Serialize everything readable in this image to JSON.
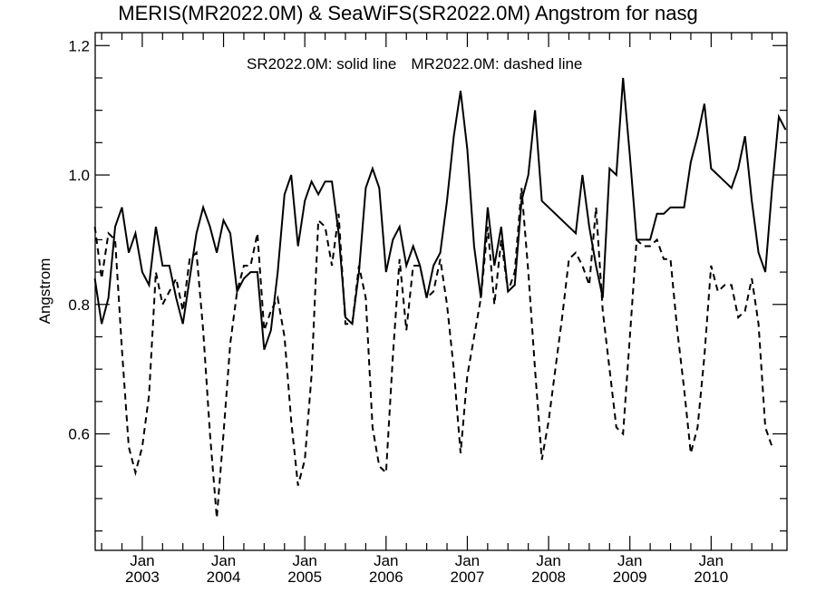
{
  "chart_data": {
    "type": "line",
    "title": "MERIS(MR2022.0M) & SeaWiFS(SR2022.0M)  Angstrom for nasg",
    "xlabel": "",
    "ylabel": "Angstrom",
    "legend": {
      "placement": "top-center",
      "entries": [
        "SR2022.0M: solid line",
        "MR2022.0M: dashed line"
      ]
    },
    "xlim": [
      "2002-06",
      "2010-12"
    ],
    "ylim": [
      0.42,
      1.22
    ],
    "y_ticks": [
      0.6,
      0.8,
      1.0,
      1.2
    ],
    "y_tick_labels": [
      "0.6",
      "0.8",
      "1.0",
      "1.2"
    ],
    "x_ticks": [
      "2003-01",
      "2004-01",
      "2005-01",
      "2006-01",
      "2007-01",
      "2008-01",
      "2009-01",
      "2010-01"
    ],
    "x_tick_labels": [
      {
        "month": "Jan",
        "year": "2003"
      },
      {
        "month": "Jan",
        "year": "2004"
      },
      {
        "month": "Jan",
        "year": "2005"
      },
      {
        "month": "Jan",
        "year": "2006"
      },
      {
        "month": "Jan",
        "year": "2007"
      },
      {
        "month": "Jan",
        "year": "2008"
      },
      {
        "month": "Jan",
        "year": "2009"
      },
      {
        "month": "Jan",
        "year": "2010"
      }
    ],
    "grid": false,
    "series": [
      {
        "name": "SR2022.0M",
        "style": "solid",
        "color": "#000000",
        "points": [
          [
            "2002-06",
            0.84
          ],
          [
            "2002-07",
            0.77
          ],
          [
            "2002-08",
            0.81
          ],
          [
            "2002-09",
            0.92
          ],
          [
            "2002-10",
            0.95
          ],
          [
            "2002-11",
            0.88
          ],
          [
            "2002-12",
            0.91
          ],
          [
            "2003-01",
            0.85
          ],
          [
            "2003-02",
            0.83
          ],
          [
            "2003-03",
            0.92
          ],
          [
            "2003-04",
            0.86
          ],
          [
            "2003-05",
            0.86
          ],
          [
            "2003-06",
            0.81
          ],
          [
            "2003-07",
            0.77
          ],
          [
            "2003-08",
            0.84
          ],
          [
            "2003-09",
            0.91
          ],
          [
            "2003-10",
            0.95
          ],
          [
            "2003-11",
            0.92
          ],
          [
            "2003-12",
            0.88
          ],
          [
            "2004-01",
            0.93
          ],
          [
            "2004-02",
            0.91
          ],
          [
            "2004-03",
            0.82
          ],
          [
            "2004-04",
            0.84
          ],
          [
            "2004-05",
            0.85
          ],
          [
            "2004-06",
            0.85
          ],
          [
            "2004-07",
            0.73
          ],
          [
            "2004-08",
            0.76
          ],
          [
            "2004-09",
            0.85
          ],
          [
            "2004-10",
            0.97
          ],
          [
            "2004-11",
            1.0
          ],
          [
            "2004-12",
            0.89
          ],
          [
            "2005-01",
            0.96
          ],
          [
            "2005-02",
            0.99
          ],
          [
            "2005-03",
            0.97
          ],
          [
            "2005-04",
            0.99
          ],
          [
            "2005-05",
            0.99
          ],
          [
            "2005-06",
            0.91
          ],
          [
            "2005-07",
            0.78
          ],
          [
            "2005-08",
            0.77
          ],
          [
            "2005-09",
            0.85
          ],
          [
            "2005-10",
            0.98
          ],
          [
            "2005-11",
            1.01
          ],
          [
            "2005-12",
            0.98
          ],
          [
            "2006-01",
            0.85
          ],
          [
            "2006-02",
            0.9
          ],
          [
            "2006-03",
            0.92
          ],
          [
            "2006-04",
            0.86
          ],
          [
            "2006-05",
            0.89
          ],
          [
            "2006-06",
            0.86
          ],
          [
            "2006-07",
            0.81
          ],
          [
            "2006-08",
            0.86
          ],
          [
            "2006-09",
            0.88
          ],
          [
            "2006-10",
            0.96
          ],
          [
            "2006-11",
            1.06
          ],
          [
            "2006-12",
            1.13
          ],
          [
            "2007-01",
            1.04
          ],
          [
            "2007-02",
            0.89
          ],
          [
            "2007-03",
            0.81
          ],
          [
            "2007-04",
            0.95
          ],
          [
            "2007-05",
            0.86
          ],
          [
            "2007-06",
            0.92
          ],
          [
            "2007-07",
            0.82
          ],
          [
            "2007-08",
            0.83
          ],
          [
            "2007-09",
            0.96
          ],
          [
            "2007-10",
            1.0
          ],
          [
            "2007-11",
            1.1
          ],
          [
            "2007-12",
            0.96
          ],
          [
            "2008-05",
            0.91
          ],
          [
            "2008-06",
            1.0
          ],
          [
            "2008-07",
            0.92
          ],
          [
            "2008-08",
            0.86
          ],
          [
            "2008-09",
            0.81
          ],
          [
            "2008-10",
            1.01
          ],
          [
            "2008-11",
            1.0
          ],
          [
            "2008-12",
            1.15
          ],
          [
            "2009-01",
            1.03
          ],
          [
            "2009-02",
            0.9
          ],
          [
            "2009-03",
            0.9
          ],
          [
            "2009-04",
            0.9
          ],
          [
            "2009-05",
            0.94
          ],
          [
            "2009-06",
            0.94
          ],
          [
            "2009-07",
            0.95
          ],
          [
            "2009-08",
            0.95
          ],
          [
            "2009-09",
            0.95
          ],
          [
            "2009-10",
            1.02
          ],
          [
            "2009-11",
            1.06
          ],
          [
            "2009-12",
            1.11
          ],
          [
            "2010-01",
            1.01
          ],
          [
            "2010-02",
            1.0
          ],
          [
            "2010-03",
            0.99
          ],
          [
            "2010-04",
            0.98
          ],
          [
            "2010-05",
            1.01
          ],
          [
            "2010-06",
            1.06
          ],
          [
            "2010-07",
            0.96
          ],
          [
            "2010-08",
            0.88
          ],
          [
            "2010-09",
            0.85
          ],
          [
            "2010-10",
            0.98
          ],
          [
            "2010-11",
            1.09
          ],
          [
            "2010-12",
            1.07
          ]
        ]
      },
      {
        "name": "MR2022.0M",
        "style": "dashed",
        "color": "#000000",
        "points": [
          [
            "2002-06",
            0.92
          ],
          [
            "2002-07",
            0.84
          ],
          [
            "2002-08",
            0.91
          ],
          [
            "2002-09",
            0.9
          ],
          [
            "2002-10",
            0.73
          ],
          [
            "2002-11",
            0.58
          ],
          [
            "2002-12",
            0.54
          ],
          [
            "2003-01",
            0.58
          ],
          [
            "2003-02",
            0.66
          ],
          [
            "2003-03",
            0.85
          ],
          [
            "2003-04",
            0.8
          ],
          [
            "2003-05",
            0.82
          ],
          [
            "2003-06",
            0.84
          ],
          [
            "2003-07",
            0.79
          ],
          [
            "2003-08",
            0.87
          ],
          [
            "2003-09",
            0.88
          ],
          [
            "2003-10",
            0.76
          ],
          [
            "2003-11",
            0.6
          ],
          [
            "2003-12",
            0.47
          ],
          [
            "2004-01",
            0.6
          ],
          [
            "2004-02",
            0.74
          ],
          [
            "2004-03",
            0.82
          ],
          [
            "2004-04",
            0.86
          ],
          [
            "2004-05",
            0.86
          ],
          [
            "2004-06",
            0.91
          ],
          [
            "2004-07",
            0.76
          ],
          [
            "2004-08",
            0.79
          ],
          [
            "2004-09",
            0.81
          ],
          [
            "2004-10",
            0.75
          ],
          [
            "2004-11",
            0.62
          ],
          [
            "2004-12",
            0.52
          ],
          [
            "2005-01",
            0.56
          ],
          [
            "2005-02",
            0.69
          ],
          [
            "2005-03",
            0.93
          ],
          [
            "2005-04",
            0.92
          ],
          [
            "2005-05",
            0.86
          ],
          [
            "2005-06",
            0.94
          ],
          [
            "2005-07",
            0.77
          ],
          [
            "2005-08",
            0.77
          ],
          [
            "2005-09",
            0.86
          ],
          [
            "2005-10",
            0.81
          ],
          [
            "2005-11",
            0.61
          ],
          [
            "2005-12",
            0.55
          ],
          [
            "2006-01",
            0.54
          ],
          [
            "2006-02",
            0.72
          ],
          [
            "2006-03",
            0.87
          ],
          [
            "2006-04",
            0.76
          ],
          [
            "2006-05",
            0.86
          ],
          [
            "2006-06",
            0.86
          ],
          [
            "2006-07",
            0.81
          ],
          [
            "2006-08",
            0.82
          ],
          [
            "2006-09",
            0.87
          ],
          [
            "2006-10",
            0.8
          ],
          [
            "2006-11",
            0.7
          ],
          [
            "2006-12",
            0.57
          ],
          [
            "2007-01",
            0.69
          ],
          [
            "2007-02",
            0.75
          ],
          [
            "2007-03",
            0.81
          ],
          [
            "2007-04",
            0.92
          ],
          [
            "2007-05",
            0.8
          ],
          [
            "2007-06",
            0.9
          ],
          [
            "2007-07",
            0.82
          ],
          [
            "2007-08",
            0.85
          ],
          [
            "2007-09",
            0.98
          ],
          [
            "2007-10",
            0.85
          ],
          [
            "2007-11",
            0.7
          ],
          [
            "2007-12",
            0.56
          ],
          [
            "2008-01",
            0.62
          ],
          [
            "2008-02",
            0.7
          ],
          [
            "2008-03",
            0.78
          ],
          [
            "2008-04",
            0.87
          ],
          [
            "2008-05",
            0.88
          ],
          [
            "2008-06",
            0.86
          ],
          [
            "2008-07",
            0.83
          ],
          [
            "2008-08",
            0.95
          ],
          [
            "2008-09",
            0.79
          ],
          [
            "2008-10",
            0.7
          ],
          [
            "2008-11",
            0.61
          ],
          [
            "2008-12",
            0.6
          ],
          [
            "2009-01",
            0.75
          ],
          [
            "2009-02",
            0.9
          ],
          [
            "2009-03",
            0.89
          ],
          [
            "2009-04",
            0.89
          ],
          [
            "2009-05",
            0.9
          ],
          [
            "2009-06",
            0.87
          ],
          [
            "2009-07",
            0.87
          ],
          [
            "2009-08",
            0.76
          ],
          [
            "2009-09",
            0.67
          ],
          [
            "2009-10",
            0.57
          ],
          [
            "2009-11",
            0.61
          ],
          [
            "2009-12",
            0.72
          ],
          [
            "2010-01",
            0.86
          ],
          [
            "2010-02",
            0.82
          ],
          [
            "2010-03",
            0.83
          ],
          [
            "2010-04",
            0.83
          ],
          [
            "2010-05",
            0.78
          ],
          [
            "2010-06",
            0.79
          ],
          [
            "2010-07",
            0.84
          ],
          [
            "2010-08",
            0.77
          ],
          [
            "2010-09",
            0.61
          ],
          [
            "2010-10",
            0.58
          ]
        ]
      }
    ]
  }
}
